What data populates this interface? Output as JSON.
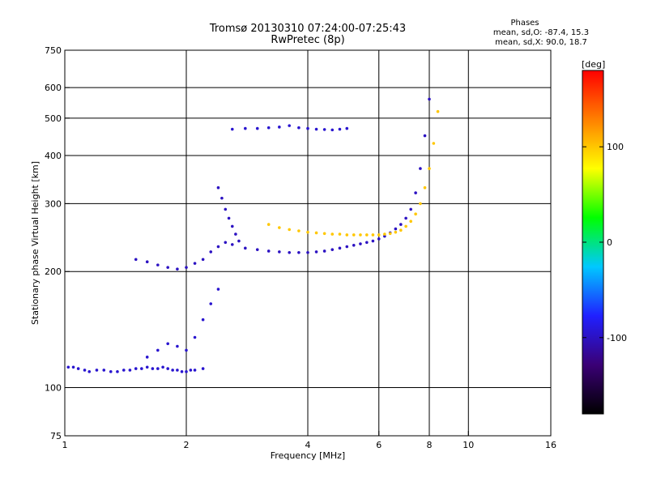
{
  "chart_data": {
    "type": "scatter",
    "title": "Tromsø 20130310 07:24:00-07:25:43",
    "subtitle": "RwPretec (8p)",
    "info": {
      "heading": "Phases",
      "line1": "mean, sd,O: -87.4, 15.3",
      "line2": "mean, sd,X: 90.0, 18.7"
    },
    "xlabel": "Frequency [MHz]",
    "ylabel": "Stationary phase Virtual Height [km]",
    "x_scale": "log",
    "y_scale": "log",
    "xlim": [
      1,
      16
    ],
    "ylim": [
      75,
      750
    ],
    "x_ticks": [
      1,
      2,
      4,
      6,
      8,
      10,
      16
    ],
    "x_tick_labels": [
      "1",
      "2",
      "4",
      "6",
      "8",
      "10",
      "16"
    ],
    "y_ticks": [
      75,
      100,
      200,
      300,
      400,
      500,
      600,
      750
    ],
    "y_tick_labels": [
      "75",
      "100",
      "200",
      "300",
      "400",
      "500",
      "600",
      "750"
    ],
    "grid": true,
    "colorbar": {
      "label": "[deg]",
      "range": [
        -180,
        180
      ],
      "ticks": [
        100,
        0,
        -100
      ],
      "tick_labels": [
        "100",
        "0",
        "-100"
      ],
      "colors": [
        "#000000",
        "#3a0075",
        "#2020ff",
        "#00c8ff",
        "#00ff00",
        "#ffff00",
        "#ff8000",
        "#ff0000"
      ]
    },
    "series": [
      {
        "color_value": -95,
        "x": [
          1.02,
          1.05,
          1.08,
          1.12,
          1.15,
          1.2,
          1.25,
          1.3,
          1.35,
          1.4,
          1.45,
          1.5,
          1.55,
          1.6,
          1.65,
          1.7,
          1.75,
          1.8,
          1.85,
          1.9,
          1.95,
          2.0,
          2.05,
          2.1,
          2.2
        ],
        "y": [
          113,
          113,
          112,
          111,
          110,
          111,
          111,
          110,
          110,
          111,
          111,
          112,
          112,
          113,
          112,
          112,
          113,
          112,
          111,
          111,
          110,
          110,
          111,
          111,
          112
        ]
      },
      {
        "color_value": -100,
        "x": [
          1.5,
          1.6,
          1.7,
          1.8,
          1.9,
          2.0,
          2.1,
          2.2,
          2.3,
          2.4,
          2.5,
          2.6,
          2.8,
          3.0,
          3.2,
          3.4,
          3.6,
          3.8,
          4.0,
          4.2,
          4.4,
          4.6,
          4.8,
          5.0,
          5.2,
          5.4,
          5.6,
          5.8,
          6.0,
          6.2,
          6.4,
          6.6,
          6.8,
          7.0,
          7.2,
          7.4,
          7.6,
          7.8,
          8.0
        ],
        "y": [
          215,
          212,
          208,
          205,
          203,
          205,
          210,
          215,
          225,
          232,
          238,
          235,
          230,
          228,
          226,
          225,
          224,
          224,
          224,
          225,
          226,
          228,
          230,
          232,
          234,
          236,
          238,
          240,
          243,
          247,
          252,
          258,
          265,
          275,
          290,
          320,
          370,
          450,
          560
        ]
      },
      {
        "color_value": 100,
        "x": [
          3.2,
          3.4,
          3.6,
          3.8,
          4.0,
          4.2,
          4.4,
          4.6,
          4.8,
          5.0,
          5.2,
          5.4,
          5.6,
          5.8,
          6.0,
          6.2,
          6.4,
          6.6,
          6.8,
          7.0,
          7.2,
          7.4,
          7.6,
          7.8,
          8.0,
          8.2,
          8.4
        ],
        "y": [
          265,
          260,
          257,
          255,
          253,
          252,
          251,
          250,
          250,
          249,
          249,
          249,
          249,
          249,
          249,
          250,
          251,
          253,
          256,
          262,
          270,
          282,
          300,
          330,
          370,
          430,
          520
        ]
      },
      {
        "color_value": -100,
        "x": [
          2.4,
          2.45,
          2.5,
          2.55,
          2.6,
          2.65,
          2.7
        ],
        "y": [
          330,
          310,
          290,
          275,
          262,
          250,
          240
        ]
      },
      {
        "color_value": -95,
        "x": [
          2.6,
          2.8,
          3.0,
          3.2,
          3.4,
          3.6,
          3.8,
          4.0,
          4.2,
          4.4,
          4.6,
          4.8,
          5.0
        ],
        "y": [
          468,
          470,
          470,
          472,
          474,
          478,
          472,
          470,
          468,
          467,
          466,
          468,
          470
        ]
      },
      {
        "color_value": -95,
        "x": [
          1.6,
          1.7,
          1.8,
          1.9,
          2.0,
          2.1,
          2.2,
          2.3,
          2.4
        ],
        "y": [
          120,
          125,
          130,
          128,
          125,
          135,
          150,
          165,
          180
        ]
      }
    ]
  }
}
